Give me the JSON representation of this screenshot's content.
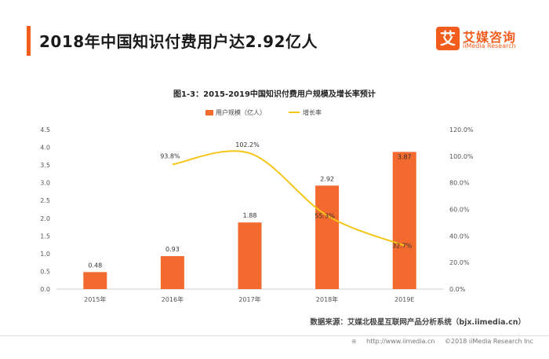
{
  "header": {
    "title": "2018年中国知识付费用户达2.92亿人",
    "accent_color": "#f25c1c"
  },
  "logo": {
    "mark": "艾",
    "name_cn": "艾媒咨询",
    "name_en": "iiMedia Research"
  },
  "chart_data": {
    "type": "bar",
    "title": "图1-3：2015-2019中国知识付费用户规模及增长率预计",
    "categories": [
      "2015年",
      "2016年",
      "2017年",
      "2018年",
      "2019E"
    ],
    "series": [
      {
        "name": "用户规模（亿人）",
        "kind": "bar",
        "axis": "left",
        "color": "#f26a2e",
        "values": [
          0.48,
          0.93,
          1.88,
          2.92,
          3.87
        ],
        "labels": [
          "0.48",
          "0.93",
          "1.88",
          "2.92",
          "3.87"
        ]
      },
      {
        "name": "增长率",
        "kind": "line",
        "axis": "right",
        "color": "#f5c518",
        "values": [
          null,
          93.8,
          102.2,
          55.3,
          32.7
        ],
        "labels": [
          "",
          "93.8%",
          "102.2%",
          "55.3%",
          "32.7%"
        ]
      }
    ],
    "y_left": {
      "range": [
        0,
        4.5
      ],
      "ticks": [
        "0.0",
        "0.5",
        "1.0",
        "1.5",
        "2.0",
        "2.5",
        "3.0",
        "3.5",
        "4.0",
        "4.5"
      ]
    },
    "y_right": {
      "range": [
        0,
        120
      ],
      "ticks": [
        "0.0%",
        "20.0%",
        "40.0%",
        "60.0%",
        "80.0%",
        "100.0%",
        "120.0%"
      ]
    },
    "grid": false,
    "legend_position": "top-center"
  },
  "source": "数据来源：艾媒北极星互联网产品分析系统（bjx.iimedia.cn）",
  "footer": {
    "url": "http://www.iimedia.cn",
    "copyright": "©2018  iiMedia Research  Inc"
  }
}
